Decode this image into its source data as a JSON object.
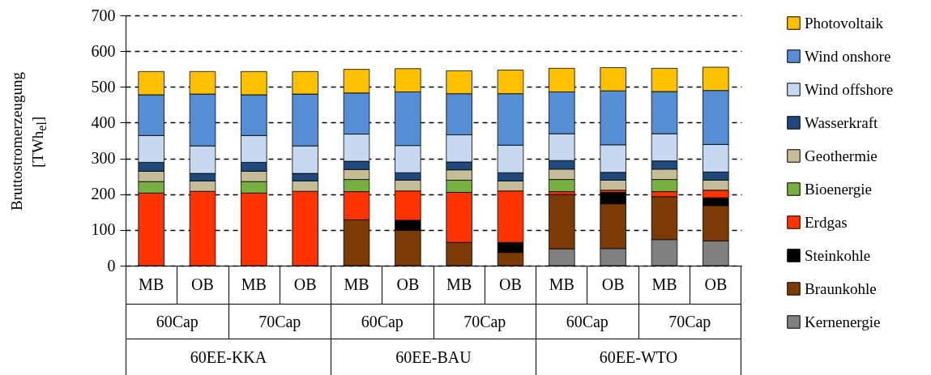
{
  "chart_data": {
    "type": "bar",
    "stacked": true,
    "ylabel": "Bruttostromerzeugung [TWh$_{el}$]",
    "categories": [
      "MB",
      "OB",
      "MB",
      "OB",
      "MB",
      "OB",
      "MB",
      "OB",
      "MB",
      "OB",
      "MB",
      "OB"
    ],
    "annotations": [
      "60Cap",
      "70Cap",
      "60Cap",
      "70Cap",
      "60Cap",
      "70Cap",
      "60EE-KKA",
      "60EE-BAU",
      "60EE-WTO"
    ],
    "series": [
      {
        "name": "Kernenergie",
        "color": "#808080",
        "values": [
          null,
          null,
          null,
          null,
          null,
          null,
          null,
          null,
          47,
          48,
          73,
          69
        ]
      },
      {
        "name": "Braunkohle",
        "color": "#7b3a06",
        "values": [
          null,
          null,
          null,
          null,
          128,
          99,
          65,
          37,
          152,
          125,
          120,
          99
        ]
      },
      {
        "name": "Steinkohle",
        "color": "#000000",
        "values": [
          null,
          null,
          null,
          null,
          null,
          28,
          null,
          28,
          null,
          32,
          null,
          22
        ]
      },
      {
        "name": "Erdgas",
        "color": "#ff3300",
        "values": [
          203,
          208,
          203,
          208,
          79,
          82,
          140,
          144,
          8,
          6,
          14,
          21
        ]
      },
      {
        "name": "Bioenergie",
        "color": "#77b041",
        "values": [
          32,
          null,
          32,
          null,
          34,
          null,
          34,
          null,
          34,
          null,
          34,
          null
        ]
      },
      {
        "name": "Geothermie",
        "color": "#c4bd97",
        "values": [
          29,
          29,
          29,
          29,
          28,
          30,
          29,
          28,
          29,
          28,
          29,
          28
        ]
      },
      {
        "name": "Wasserkraft",
        "color": "#1f497d",
        "values": [
          25,
          21,
          25,
          21,
          23,
          21,
          22,
          23,
          24,
          22,
          23,
          23
        ]
      },
      {
        "name": "Wind offshore",
        "color": "#c6d9f1",
        "values": [
          75,
          77,
          75,
          77,
          76,
          76,
          76,
          77,
          75,
          77,
          76,
          77
        ]
      },
      {
        "name": "Wind onshore",
        "color": "#558ed5",
        "values": [
          114,
          145,
          114,
          145,
          115,
          150,
          115,
          144,
          117,
          151,
          118,
          151
        ]
      },
      {
        "name": "Photovoltaik",
        "color": "#ffc000",
        "values": [
          65,
          63,
          65,
          63,
          66,
          65,
          64,
          66,
          66,
          65,
          65,
          65
        ]
      }
    ],
    "ylim": [
      0,
      700
    ],
    "yticks": [
      0,
      100,
      200,
      300,
      400,
      500,
      600,
      700
    ],
    "grid": "y",
    "legend": "right"
  }
}
